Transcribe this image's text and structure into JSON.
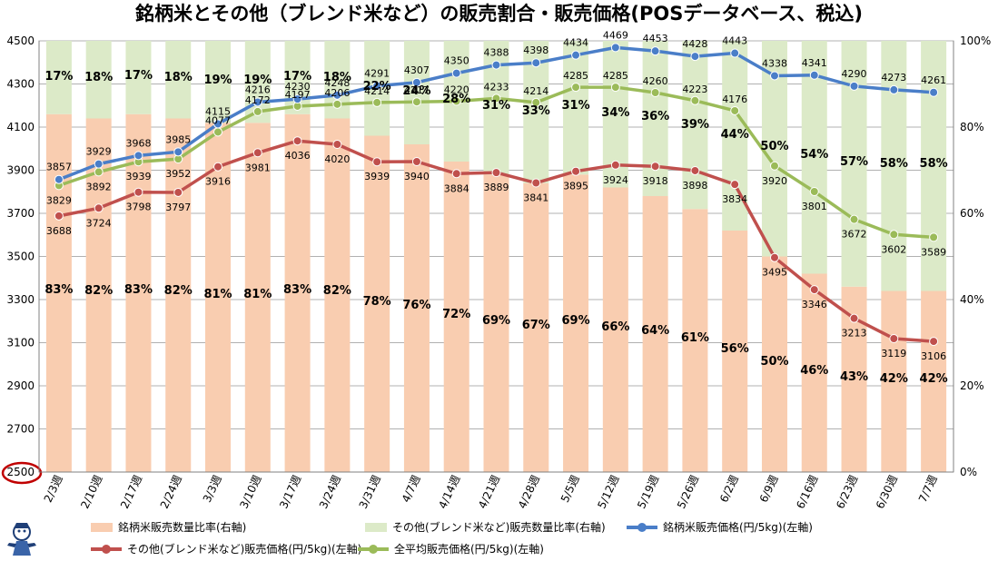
{
  "page": {
    "title": "銘柄米とその他（ブレンド米など）の販売割合・販売価格(POSデータベース、税込)"
  },
  "colors": {
    "brand_bar": "#F9CDB0",
    "other_bar": "#DCEAC8",
    "brand_price_line": "#4A7EC8",
    "other_price_line": "#C0504D",
    "avg_price_line": "#9BBB59",
    "highlight_circle": "#C00000"
  },
  "chart_data": {
    "type": "bar+line",
    "title": "銘柄米とその他（ブレンド米など）の販売割合・販売価格(POSデータベース、税込)",
    "categories": [
      "2/3週",
      "2/10週",
      "2/17週",
      "2/24週",
      "3/3週",
      "3/10週",
      "3/17週",
      "3/24週",
      "3/31週",
      "4/7週",
      "4/14週",
      "4/21週",
      "4/28週",
      "5/5週",
      "5/12週",
      "5/19週",
      "5/26週",
      "6/2週",
      "6/9週",
      "6/16週",
      "6/23週",
      "6/30週",
      "7/7週"
    ],
    "left_axis": {
      "min": 2500,
      "max": 4500,
      "ticks": [
        "2500",
        "2700",
        "2900",
        "3100",
        "3300",
        "3500",
        "3700",
        "3900",
        "4100",
        "4300",
        "4500"
      ],
      "highlighted_tick": "2500"
    },
    "right_axis": {
      "min": 0,
      "max": 100,
      "ticks": [
        "0%",
        "20%",
        "40%",
        "60%",
        "80%",
        "100%"
      ]
    },
    "series": [
      {
        "name": "銘柄米販売数量比率(右軸)",
        "type": "stacked-bar",
        "axis": "right",
        "values": [
          83,
          82,
          83,
          82,
          81,
          81,
          83,
          82,
          78,
          76,
          72,
          69,
          67,
          69,
          66,
          64,
          61,
          56,
          50,
          46,
          43,
          42,
          42
        ],
        "labels": [
          "83%",
          "82%",
          "83%",
          "82%",
          "81%",
          "81%",
          "83%",
          "82%",
          "78%",
          "76%",
          "72%",
          "69%",
          "67%",
          "69%",
          "66%",
          "64%",
          "61%",
          "56%",
          "50%",
          "46%",
          "43%",
          "42%",
          "42%"
        ]
      },
      {
        "name": "その他(ブレンド米など)販売数量比率(右軸)",
        "type": "stacked-bar",
        "axis": "right",
        "values": [
          17,
          18,
          17,
          18,
          19,
          19,
          17,
          18,
          22,
          24,
          28,
          31,
          33,
          31,
          34,
          36,
          39,
          44,
          50,
          54,
          57,
          58,
          58
        ],
        "labels": [
          "17%",
          "18%",
          "17%",
          "18%",
          "19%",
          "19%",
          "17%",
          "18%",
          "22%",
          "24%",
          "28%",
          "31%",
          "33%",
          "31%",
          "34%",
          "36%",
          "39%",
          "44%",
          "50%",
          "54%",
          "57%",
          "58%",
          "58%"
        ]
      },
      {
        "name": "銘柄米販売価格(円/5kg)(左軸)",
        "type": "line",
        "axis": "left",
        "values": [
          3857,
          3929,
          3968,
          3985,
          4115,
          4216,
          4230,
          4248,
          4291,
          4307,
          4350,
          4388,
          4398,
          4434,
          4469,
          4453,
          4428,
          4443,
          4338,
          4341,
          4290,
          4273,
          4261
        ],
        "labels": [
          "3857",
          "3929",
          "3968",
          "3985",
          "4115",
          "4216",
          "4230",
          "4248",
          "4291",
          "4307",
          "4350",
          "4388",
          "4398",
          "4434",
          "4469",
          "4453",
          "4428",
          "4443",
          "4338",
          "4341",
          "4290",
          "4273",
          "4261"
        ]
      },
      {
        "name": "その他(ブレンド米など)販売価格(円/5kg)(左軸)",
        "type": "line",
        "axis": "left",
        "values": [
          3688,
          3724,
          3798,
          3797,
          3916,
          3981,
          4036,
          4020,
          3939,
          3940,
          3884,
          3889,
          3841,
          3895,
          3924,
          3918,
          3898,
          3834,
          3495,
          3346,
          3213,
          3119,
          3106
        ],
        "labels": [
          "3688",
          "3724",
          "3798",
          "3797",
          "3916",
          "3981",
          "4036",
          "4020",
          "3939",
          "3940",
          "3884",
          "3889",
          "3841",
          "3895",
          "3924",
          "3918",
          "3898",
          "3834",
          "3495",
          "3346",
          "3213",
          "3119",
          "3106"
        ]
      },
      {
        "name": "全平均販売価格(円/5kg)(左軸)",
        "type": "line",
        "axis": "left",
        "values": [
          3829,
          3892,
          3939,
          3952,
          4077,
          4172,
          4197,
          4206,
          4214,
          4217,
          4220,
          4233,
          4214,
          4285,
          4285,
          4260,
          4223,
          4176,
          3920,
          3801,
          3672,
          3602,
          3589
        ],
        "labels": [
          "3829",
          "3892",
          "3939",
          "3952",
          "4077",
          "4172",
          "4197",
          "4206",
          "4214",
          "4217",
          "4220",
          "4233",
          "4214",
          "4285",
          "4285",
          "4260",
          "4223",
          "4176",
          "3920",
          "3801",
          "3672",
          "3602",
          "3589"
        ]
      }
    ]
  },
  "legend": {
    "brand_share": "銘柄米販売数量比率(右軸)",
    "other_share": "その他(ブレンド米など)販売数量比率(右軸)",
    "brand_price": "銘柄米販売価格(円/5kg)(左軸)",
    "other_price": "その他(ブレンド米など)販売価格(円/5kg)(左軸)",
    "avg_price": "全平均販売価格(円/5kg)(左軸)"
  },
  "icons": {
    "mascot": "mascot-icon"
  }
}
